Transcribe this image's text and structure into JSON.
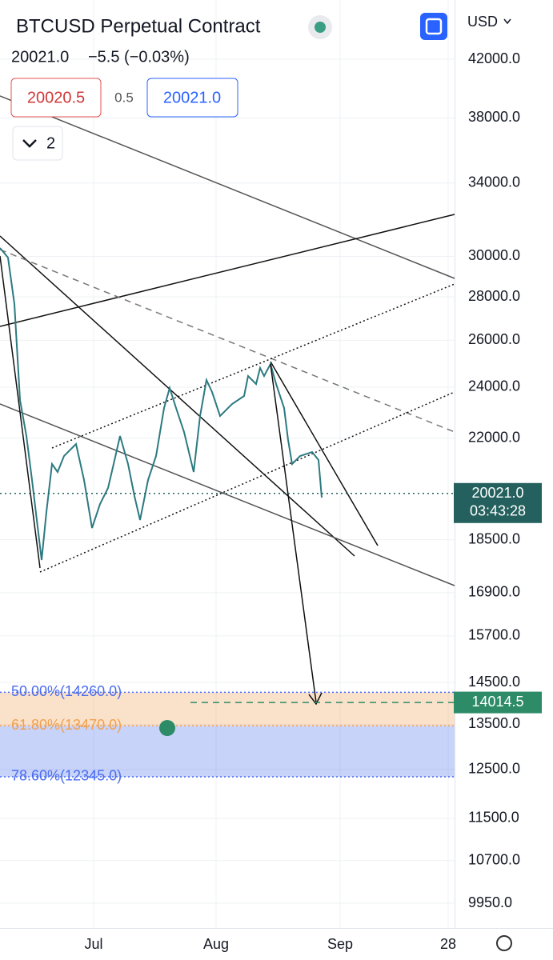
{
  "header": {
    "symbol": "BTCUSD Perpetual Contract",
    "last": "20021.0",
    "change": "−5.5 (−0.03%)",
    "bid": "20020.5",
    "spread": "0.5",
    "ask": "20021.0",
    "collapse_count": "2",
    "currency": "USD"
  },
  "price_axis": {
    "scale": "log",
    "ticks": [
      {
        "value": 42000,
        "label": "42000.0"
      },
      {
        "value": 38000,
        "label": "38000.0"
      },
      {
        "value": 34000,
        "label": "34000.0"
      },
      {
        "value": 30000,
        "label": "30000.0"
      },
      {
        "value": 28000,
        "label": "28000.0"
      },
      {
        "value": 26000,
        "label": "26000.0"
      },
      {
        "value": 24000,
        "label": "24000.0"
      },
      {
        "value": 22000,
        "label": "22000.0"
      },
      {
        "value": 18500,
        "label": "18500.0"
      },
      {
        "value": 16900,
        "label": "16900.0"
      },
      {
        "value": 15700,
        "label": "15700.0"
      },
      {
        "value": 14500,
        "label": "14500.0"
      },
      {
        "value": 13500,
        "label": "13500.0"
      },
      {
        "value": 12500,
        "label": "12500.0"
      },
      {
        "value": 11500,
        "label": "11500.0"
      },
      {
        "value": 10700,
        "label": "10700.0"
      },
      {
        "value": 9950,
        "label": "9950.0"
      }
    ]
  },
  "time_axis": {
    "labels": [
      "Jul",
      "Aug",
      "Sep",
      "28"
    ]
  },
  "fib_levels": [
    {
      "value": 14260,
      "label": "50.00%(14260.0)",
      "color": "#4a6cf0"
    },
    {
      "value": 13470,
      "label": "61.80%(13470.0)",
      "color": "#f0a050"
    },
    {
      "value": 12345,
      "label": "78.60%(12345.0)",
      "color": "#4a6cf0"
    }
  ],
  "price_tags": [
    {
      "value": 20021,
      "label": "20021.0",
      "countdown": "03:43:28",
      "color": "#24615e"
    },
    {
      "value": 14014.5,
      "label": "14014.5",
      "color": "#2e8b68"
    }
  ]
}
